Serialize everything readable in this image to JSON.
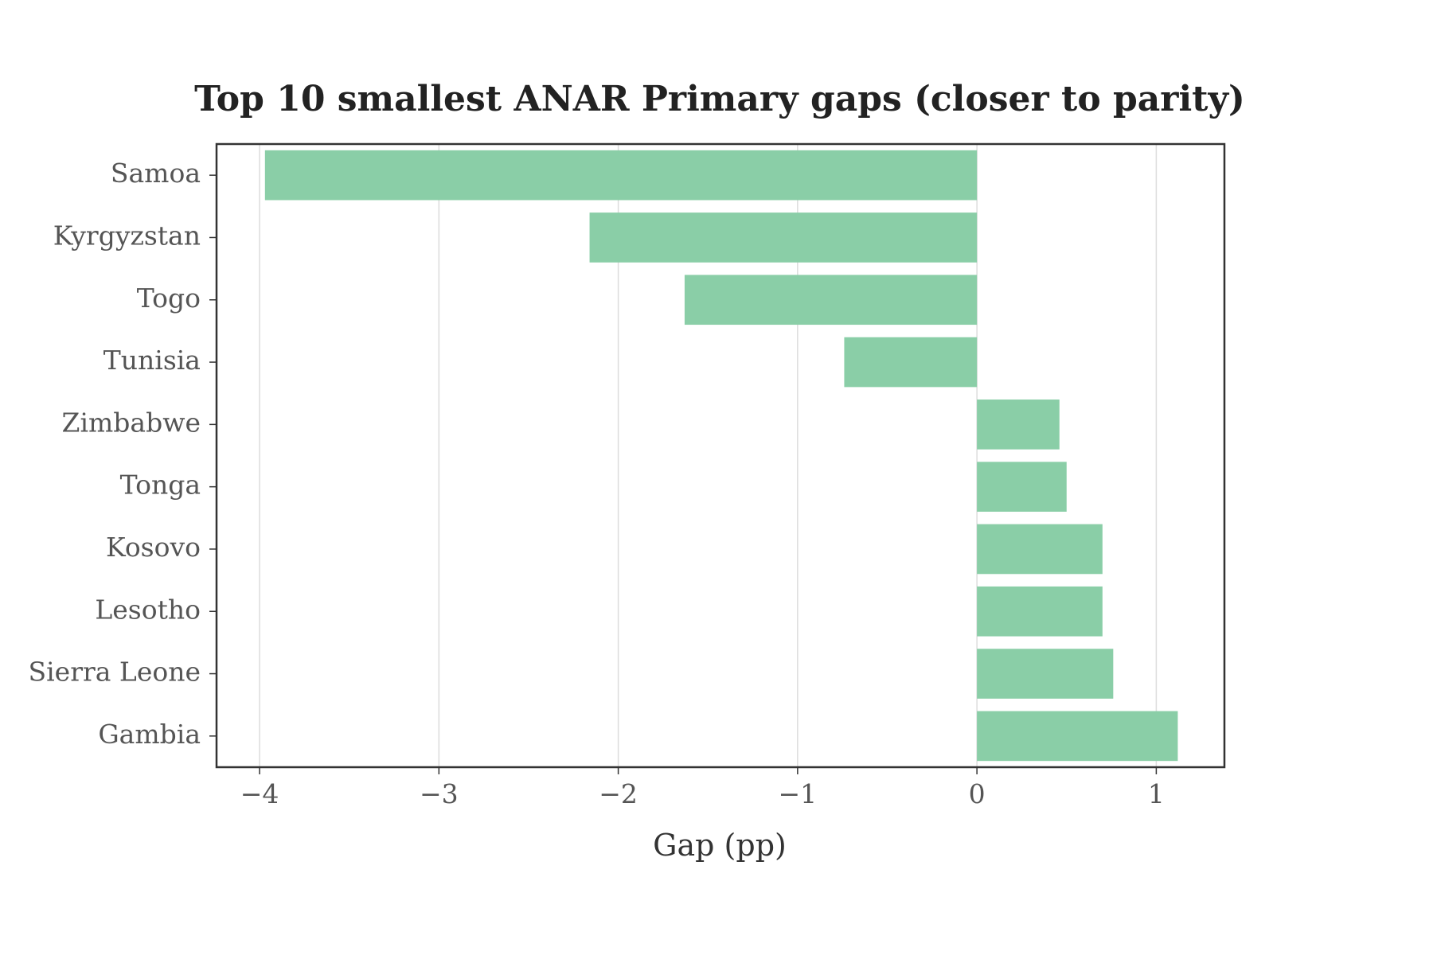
{
  "chart_data": {
    "type": "bar",
    "orientation": "horizontal",
    "title": "Top 10 smallest ANAR Primary gaps (closer to parity)",
    "xlabel": "Gap (pp)",
    "ylabel": "",
    "categories": [
      "Samoa",
      "Kyrgyzstan",
      "Togo",
      "Tunisia",
      "Zimbabwe",
      "Tonga",
      "Kosovo",
      "Lesotho",
      "Sierra Leone",
      "Gambia"
    ],
    "values": [
      -3.97,
      -2.16,
      -1.63,
      -0.74,
      0.46,
      0.5,
      0.7,
      0.7,
      0.76,
      1.12
    ],
    "xlim": [
      -4.24,
      1.38
    ],
    "xticks": [
      -4,
      -3,
      -2,
      -1,
      0,
      1
    ],
    "xtick_labels": [
      "−4",
      "−3",
      "−2",
      "−1",
      "0",
      "1"
    ],
    "grid": "x",
    "legend": "none",
    "colors": {
      "bar": "#8ACEA7",
      "grid": "#dcdcdc",
      "axis": "#333333",
      "text": "#555555"
    }
  }
}
